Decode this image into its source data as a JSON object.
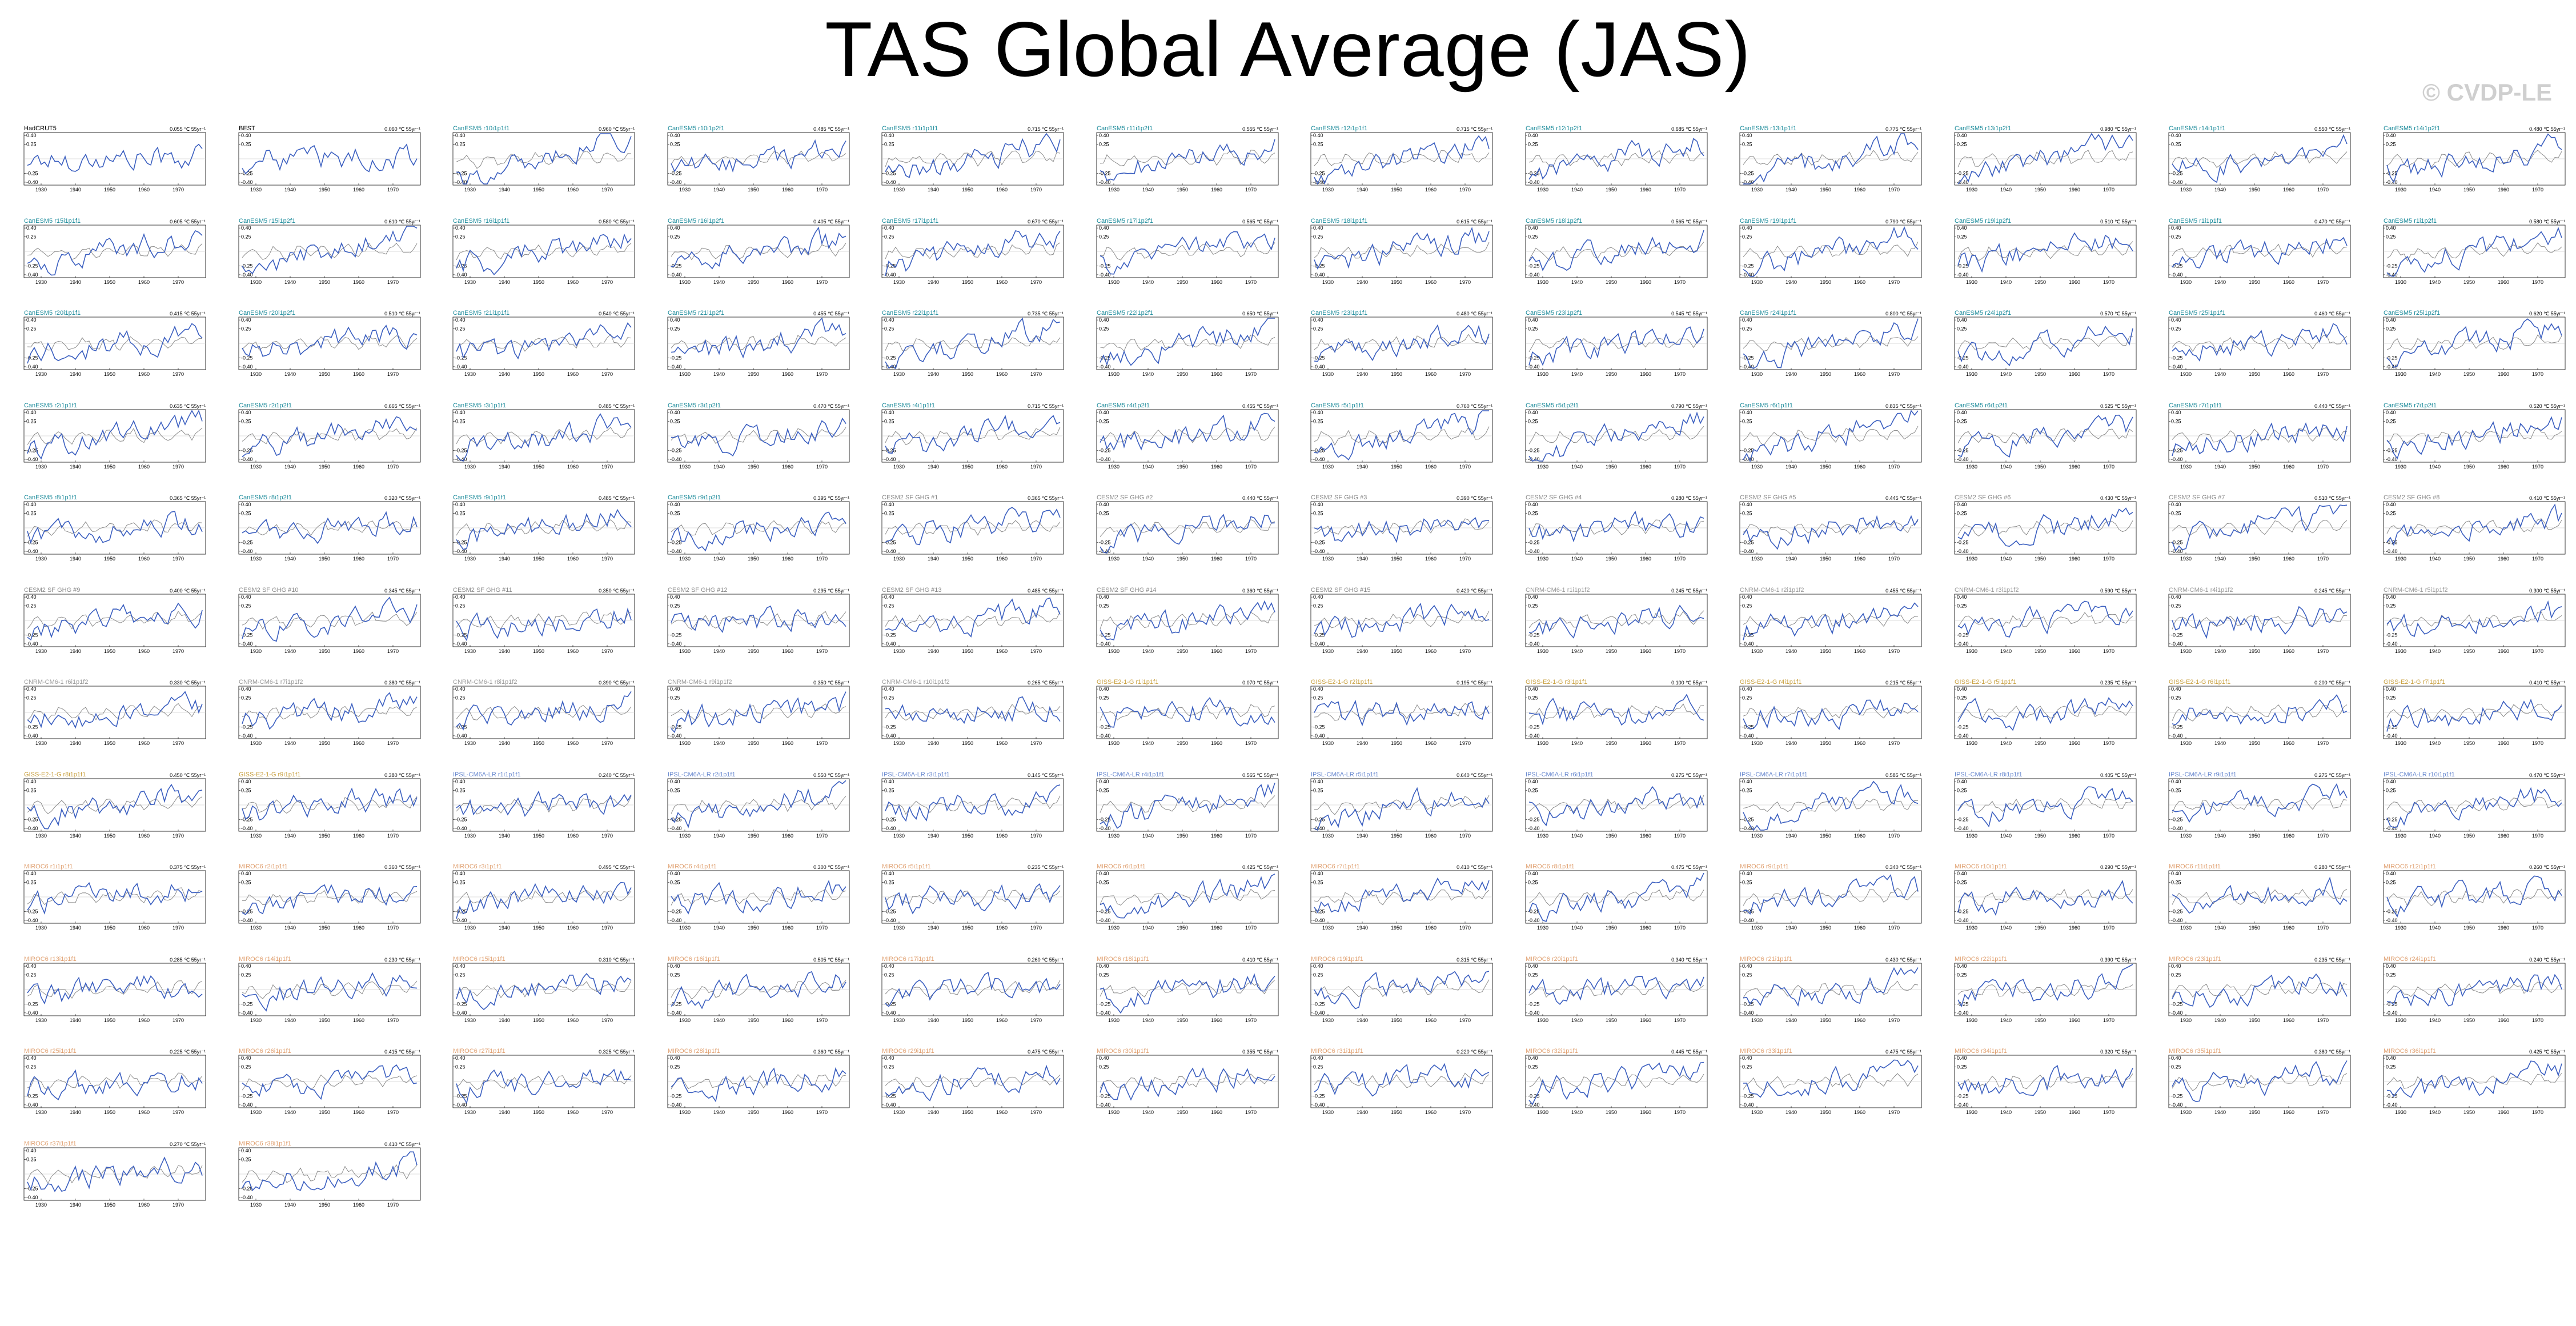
{
  "title": "TAS Global Average (JAS)",
  "watermark": "© CVDP-LE",
  "colors": {
    "data_line": "#3b5fc0",
    "reference_line": "#8a8a8a",
    "axis": "#000000",
    "cesm_title": "#1a8a9a",
    "cesm_lens_title": "#888888",
    "csiro_title": "#999999",
    "giss_title": "#c8a040",
    "ipsl_title": "#6a8ad0",
    "miroc_title": "#e0a070",
    "obs_title": "#000000"
  },
  "chart_data": {
    "type": "line",
    "layout": "panel grid, 12 columns",
    "x_ticks": [
      "1930",
      "1940",
      "1950",
      "1960",
      "1970"
    ],
    "y_ticks": [
      "0.40",
      "0.25",
      "-0.25",
      "-0.40"
    ],
    "xlim": [
      1925,
      1978
    ],
    "ylim": [
      -0.45,
      0.45
    ],
    "panels": [
      {
        "name": "HadCRUT5",
        "trend": "0.055 ℃ 55yr⁻¹",
        "group": "obs"
      },
      {
        "name": "BEST",
        "trend": "0.060 ℃ 55yr⁻¹",
        "group": "obs"
      },
      {
        "name": "CanESM5 r10i1p1f1",
        "trend": "0.960 ℃ 55yr⁻¹",
        "group": "cesm"
      },
      {
        "name": "CanESM5 r10i1p2f1",
        "trend": "0.485 ℃ 55yr⁻¹",
        "group": "cesm"
      },
      {
        "name": "CanESM5 r11i1p1f1",
        "trend": "0.715 ℃ 55yr⁻¹",
        "group": "cesm"
      },
      {
        "name": "CanESM5 r11i1p2f1",
        "trend": "0.555 ℃ 55yr⁻¹",
        "group": "cesm"
      },
      {
        "name": "CanESM5 r12i1p1f1",
        "trend": "0.715 ℃ 55yr⁻¹",
        "group": "cesm"
      },
      {
        "name": "CanESM5 r12i1p2f1",
        "trend": "0.685 ℃ 55yr⁻¹",
        "group": "cesm"
      },
      {
        "name": "CanESM5 r13i1p1f1",
        "trend": "0.775 ℃ 55yr⁻¹",
        "group": "cesm"
      },
      {
        "name": "CanESM5 r13i1p2f1",
        "trend": "0.980 ℃ 55yr⁻¹",
        "group": "cesm"
      },
      {
        "name": "CanESM5 r14i1p1f1",
        "trend": "0.550 ℃ 55yr⁻¹",
        "group": "cesm"
      },
      {
        "name": "CanESM5 r14i1p2f1",
        "trend": "0.480 ℃ 55yr⁻¹",
        "group": "cesm"
      },
      {
        "name": "CanESM5 r15i1p1f1",
        "trend": "0.605 ℃ 55yr⁻¹",
        "group": "cesm"
      },
      {
        "name": "CanESM5 r15i1p2f1",
        "trend": "0.610 ℃ 55yr⁻¹",
        "group": "cesm"
      },
      {
        "name": "CanESM5 r16i1p1f1",
        "trend": "0.580 ℃ 55yr⁻¹",
        "group": "cesm"
      },
      {
        "name": "CanESM5 r16i1p2f1",
        "trend": "0.405 ℃ 55yr⁻¹",
        "group": "cesm"
      },
      {
        "name": "CanESM5 r17i1p1f1",
        "trend": "0.670 ℃ 55yr⁻¹",
        "group": "cesm"
      },
      {
        "name": "CanESM5 r17i1p2f1",
        "trend": "0.565 ℃ 55yr⁻¹",
        "group": "cesm"
      },
      {
        "name": "CanESM5 r18i1p1f1",
        "trend": "0.615 ℃ 55yr⁻¹",
        "group": "cesm"
      },
      {
        "name": "CanESM5 r18i1p2f1",
        "trend": "0.565 ℃ 55yr⁻¹",
        "group": "cesm"
      },
      {
        "name": "CanESM5 r19i1p1f1",
        "trend": "0.790 ℃ 55yr⁻¹",
        "group": "cesm"
      },
      {
        "name": "CanESM5 r19i1p2f1",
        "trend": "0.510 ℃ 55yr⁻¹",
        "group": "cesm"
      },
      {
        "name": "CanESM5 r1i1p1f1",
        "trend": "0.470 ℃ 55yr⁻¹",
        "group": "cesm"
      },
      {
        "name": "CanESM5 r1i1p2f1",
        "trend": "0.580 ℃ 55yr⁻¹",
        "group": "cesm"
      },
      {
        "name": "CanESM5 r20i1p1f1",
        "trend": "0.415 ℃ 55yr⁻¹",
        "group": "cesm"
      },
      {
        "name": "CanESM5 r20i1p2f1",
        "trend": "0.510 ℃ 55yr⁻¹",
        "group": "cesm"
      },
      {
        "name": "CanESM5 r21i1p1f1",
        "trend": "0.540 ℃ 55yr⁻¹",
        "group": "cesm"
      },
      {
        "name": "CanESM5 r21i1p2f1",
        "trend": "0.455 ℃ 55yr⁻¹",
        "group": "cesm"
      },
      {
        "name": "CanESM5 r22i1p1f1",
        "trend": "0.735 ℃ 55yr⁻¹",
        "group": "cesm"
      },
      {
        "name": "CanESM5 r22i1p2f1",
        "trend": "0.650 ℃ 55yr⁻¹",
        "group": "cesm"
      },
      {
        "name": "CanESM5 r23i1p1f1",
        "trend": "0.480 ℃ 55yr⁻¹",
        "group": "cesm"
      },
      {
        "name": "CanESM5 r23i1p2f1",
        "trend": "0.545 ℃ 55yr⁻¹",
        "group": "cesm"
      },
      {
        "name": "CanESM5 r24i1p1f1",
        "trend": "0.800 ℃ 55yr⁻¹",
        "group": "cesm"
      },
      {
        "name": "CanESM5 r24i1p2f1",
        "trend": "0.570 ℃ 55yr⁻¹",
        "group": "cesm"
      },
      {
        "name": "CanESM5 r25i1p1f1",
        "trend": "0.460 ℃ 55yr⁻¹",
        "group": "cesm"
      },
      {
        "name": "CanESM5 r25i1p2f1",
        "trend": "0.620 ℃ 55yr⁻¹",
        "group": "cesm"
      },
      {
        "name": "CanESM5 r2i1p1f1",
        "trend": "0.635 ℃ 55yr⁻¹",
        "group": "cesm"
      },
      {
        "name": "CanESM5 r2i1p2f1",
        "trend": "0.665 ℃ 55yr⁻¹",
        "group": "cesm"
      },
      {
        "name": "CanESM5 r3i1p1f1",
        "trend": "0.485 ℃ 55yr⁻¹",
        "group": "cesm"
      },
      {
        "name": "CanESM5 r3i1p2f1",
        "trend": "0.470 ℃ 55yr⁻¹",
        "group": "cesm"
      },
      {
        "name": "CanESM5 r4i1p1f1",
        "trend": "0.715 ℃ 55yr⁻¹",
        "group": "cesm"
      },
      {
        "name": "CanESM5 r4i1p2f1",
        "trend": "0.455 ℃ 55yr⁻¹",
        "group": "cesm"
      },
      {
        "name": "CanESM5 r5i1p1f1",
        "trend": "0.760 ℃ 55yr⁻¹",
        "group": "cesm"
      },
      {
        "name": "CanESM5 r5i1p2f1",
        "trend": "0.790 ℃ 55yr⁻¹",
        "group": "cesm"
      },
      {
        "name": "CanESM5 r6i1p1f1",
        "trend": "0.835 ℃ 55yr⁻¹",
        "group": "cesm"
      },
      {
        "name": "CanESM5 r6i1p2f1",
        "trend": "0.525 ℃ 55yr⁻¹",
        "group": "cesm"
      },
      {
        "name": "CanESM5 r7i1p1f1",
        "trend": "0.440 ℃ 55yr⁻¹",
        "group": "cesm"
      },
      {
        "name": "CanESM5 r7i1p2f1",
        "trend": "0.520 ℃ 55yr⁻¹",
        "group": "cesm"
      },
      {
        "name": "CanESM5 r8i1p1f1",
        "trend": "0.365 ℃ 55yr⁻¹",
        "group": "cesm"
      },
      {
        "name": "CanESM5 r8i1p2f1",
        "trend": "0.320 ℃ 55yr⁻¹",
        "group": "cesm"
      },
      {
        "name": "CanESM5 r9i1p1f1",
        "trend": "0.485 ℃ 55yr⁻¹",
        "group": "cesm"
      },
      {
        "name": "CanESM5 r9i1p2f1",
        "trend": "0.395 ℃ 55yr⁻¹",
        "group": "cesm"
      },
      {
        "name": "CESM2 SF GHG #1",
        "trend": "0.365 ℃ 55yr⁻¹",
        "group": "cesm_lens"
      },
      {
        "name": "CESM2 SF GHG #2",
        "trend": "0.440 ℃ 55yr⁻¹",
        "group": "cesm_lens"
      },
      {
        "name": "CESM2 SF GHG #3",
        "trend": "0.390 ℃ 55yr⁻¹",
        "group": "cesm_lens"
      },
      {
        "name": "CESM2 SF GHG #4",
        "trend": "0.280 ℃ 55yr⁻¹",
        "group": "cesm_lens"
      },
      {
        "name": "CESM2 SF GHG #5",
        "trend": "0.445 ℃ 55yr⁻¹",
        "group": "cesm_lens"
      },
      {
        "name": "CESM2 SF GHG #6",
        "trend": "0.430 ℃ 55yr⁻¹",
        "group": "cesm_lens"
      },
      {
        "name": "CESM2 SF GHG #7",
        "trend": "0.510 ℃ 55yr⁻¹",
        "group": "cesm_lens"
      },
      {
        "name": "CESM2 SF GHG #8",
        "trend": "0.410 ℃ 55yr⁻¹",
        "group": "cesm_lens"
      },
      {
        "name": "CESM2 SF GHG #9",
        "trend": "0.400 ℃ 55yr⁻¹",
        "group": "cesm_lens"
      },
      {
        "name": "CESM2 SF GHG #10",
        "trend": "0.345 ℃ 55yr⁻¹",
        "group": "cesm_lens"
      },
      {
        "name": "CESM2 SF GHG #11",
        "trend": "0.350 ℃ 55yr⁻¹",
        "group": "cesm_lens"
      },
      {
        "name": "CESM2 SF GHG #12",
        "trend": "0.295 ℃ 55yr⁻¹",
        "group": "cesm_lens"
      },
      {
        "name": "CESM2 SF GHG #13",
        "trend": "0.485 ℃ 55yr⁻¹",
        "group": "cesm_lens"
      },
      {
        "name": "CESM2 SF GHG #14",
        "trend": "0.360 ℃ 55yr⁻¹",
        "group": "cesm_lens"
      },
      {
        "name": "CESM2 SF GHG #15",
        "trend": "0.420 ℃ 55yr⁻¹",
        "group": "cesm_lens"
      },
      {
        "name": "CNRM-CM6-1 r1i1p1f2",
        "trend": "0.245 ℃ 55yr⁻¹",
        "group": "csiro"
      },
      {
        "name": "CNRM-CM6-1 r2i1p1f2",
        "trend": "0.455 ℃ 55yr⁻¹",
        "group": "csiro"
      },
      {
        "name": "CNRM-CM6-1 r3i1p1f2",
        "trend": "0.590 ℃ 55yr⁻¹",
        "group": "csiro"
      },
      {
        "name": "CNRM-CM6-1 r4i1p1f2",
        "trend": "0.245 ℃ 55yr⁻¹",
        "group": "csiro"
      },
      {
        "name": "CNRM-CM6-1 r5i1p1f2",
        "trend": "0.300 ℃ 55yr⁻¹",
        "group": "csiro"
      },
      {
        "name": "CNRM-CM6-1 r6i1p1f2",
        "trend": "0.330 ℃ 55yr⁻¹",
        "group": "csiro"
      },
      {
        "name": "CNRM-CM6-1 r7i1p1f2",
        "trend": "0.380 ℃ 55yr⁻¹",
        "group": "csiro"
      },
      {
        "name": "CNRM-CM6-1 r8i1p1f2",
        "trend": "0.390 ℃ 55yr⁻¹",
        "group": "csiro"
      },
      {
        "name": "CNRM-CM6-1 r9i1p1f2",
        "trend": "0.350 ℃ 55yr⁻¹",
        "group": "csiro"
      },
      {
        "name": "CNRM-CM6-1 r10i1p1f2",
        "trend": "0.265 ℃ 55yr⁻¹",
        "group": "csiro"
      },
      {
        "name": "GISS-E2-1-G r1i1p1f1",
        "trend": "0.070 ℃ 55yr⁻¹",
        "group": "giss"
      },
      {
        "name": "GISS-E2-1-G r2i1p1f1",
        "trend": "0.195 ℃ 55yr⁻¹",
        "group": "giss"
      },
      {
        "name": "GISS-E2-1-G r3i1p1f1",
        "trend": "0.100 ℃ 55yr⁻¹",
        "group": "giss"
      },
      {
        "name": "GISS-E2-1-G r4i1p1f1",
        "trend": "0.215 ℃ 55yr⁻¹",
        "group": "giss"
      },
      {
        "name": "GISS-E2-1-G r5i1p1f1",
        "trend": "0.235 ℃ 55yr⁻¹",
        "group": "giss"
      },
      {
        "name": "GISS-E2-1-G r6i1p1f1",
        "trend": "0.200 ℃ 55yr⁻¹",
        "group": "giss"
      },
      {
        "name": "GISS-E2-1-G r7i1p1f1",
        "trend": "0.410 ℃ 55yr⁻¹",
        "group": "giss"
      },
      {
        "name": "GISS-E2-1-G r8i1p1f1",
        "trend": "0.450 ℃ 55yr⁻¹",
        "group": "giss"
      },
      {
        "name": "GISS-E2-1-G r9i1p1f1",
        "trend": "0.380 ℃ 55yr⁻¹",
        "group": "giss"
      },
      {
        "name": "IPSL-CM6A-LR r1i1p1f1",
        "trend": "0.240 ℃ 55yr⁻¹",
        "group": "ipsl"
      },
      {
        "name": "IPSL-CM6A-LR r2i1p1f1",
        "trend": "0.550 ℃ 55yr⁻¹",
        "group": "ipsl"
      },
      {
        "name": "IPSL-CM6A-LR r3i1p1f1",
        "trend": "0.145 ℃ 55yr⁻¹",
        "group": "ipsl"
      },
      {
        "name": "IPSL-CM6A-LR r4i1p1f1",
        "trend": "0.565 ℃ 55yr⁻¹",
        "group": "ipsl"
      },
      {
        "name": "IPSL-CM6A-LR r5i1p1f1",
        "trend": "0.640 ℃ 55yr⁻¹",
        "group": "ipsl"
      },
      {
        "name": "IPSL-CM6A-LR r6i1p1f1",
        "trend": "0.275 ℃ 55yr⁻¹",
        "group": "ipsl"
      },
      {
        "name": "IPSL-CM6A-LR r7i1p1f1",
        "trend": "0.585 ℃ 55yr⁻¹",
        "group": "ipsl"
      },
      {
        "name": "IPSL-CM6A-LR r8i1p1f1",
        "trend": "0.405 ℃ 55yr⁻¹",
        "group": "ipsl"
      },
      {
        "name": "IPSL-CM6A-LR r9i1p1f1",
        "trend": "0.275 ℃ 55yr⁻¹",
        "group": "ipsl"
      },
      {
        "name": "IPSL-CM6A-LR r10i1p1f1",
        "trend": "0.470 ℃ 55yr⁻¹",
        "group": "ipsl"
      },
      {
        "name": "MIROC6 r1i1p1f1",
        "trend": "0.375 ℃ 55yr⁻¹",
        "group": "miroc"
      },
      {
        "name": "MIROC6 r2i1p1f1",
        "trend": "0.360 ℃ 55yr⁻¹",
        "group": "miroc"
      },
      {
        "name": "MIROC6 r3i1p1f1",
        "trend": "0.495 ℃ 55yr⁻¹",
        "group": "miroc"
      },
      {
        "name": "MIROC6 r4i1p1f1",
        "trend": "0.300 ℃ 55yr⁻¹",
        "group": "miroc"
      },
      {
        "name": "MIROC6 r5i1p1f1",
        "trend": "0.235 ℃ 55yr⁻¹",
        "group": "miroc"
      },
      {
        "name": "MIROC6 r6i1p1f1",
        "trend": "0.425 ℃ 55yr⁻¹",
        "group": "miroc"
      },
      {
        "name": "MIROC6 r7i1p1f1",
        "trend": "0.410 ℃ 55yr⁻¹",
        "group": "miroc"
      },
      {
        "name": "MIROC6 r8i1p1f1",
        "trend": "0.475 ℃ 55yr⁻¹",
        "group": "miroc"
      },
      {
        "name": "MIROC6 r9i1p1f1",
        "trend": "0.340 ℃ 55yr⁻¹",
        "group": "miroc"
      },
      {
        "name": "MIROC6 r10i1p1f1",
        "trend": "0.290 ℃ 55yr⁻¹",
        "group": "miroc"
      },
      {
        "name": "MIROC6 r11i1p1f1",
        "trend": "0.280 ℃ 55yr⁻¹",
        "group": "miroc"
      },
      {
        "name": "MIROC6 r12i1p1f1",
        "trend": "0.260 ℃ 55yr⁻¹",
        "group": "miroc"
      },
      {
        "name": "MIROC6 r13i1p1f1",
        "trend": "0.285 ℃ 55yr⁻¹",
        "group": "miroc"
      },
      {
        "name": "MIROC6 r14i1p1f1",
        "trend": "0.230 ℃ 55yr⁻¹",
        "group": "miroc"
      },
      {
        "name": "MIROC6 r15i1p1f1",
        "trend": "0.310 ℃ 55yr⁻¹",
        "group": "miroc"
      },
      {
        "name": "MIROC6 r16i1p1f1",
        "trend": "0.505 ℃ 55yr⁻¹",
        "group": "miroc"
      },
      {
        "name": "MIROC6 r17i1p1f1",
        "trend": "0.260 ℃ 55yr⁻¹",
        "group": "miroc"
      },
      {
        "name": "MIROC6 r18i1p1f1",
        "trend": "0.410 ℃ 55yr⁻¹",
        "group": "miroc"
      },
      {
        "name": "MIROC6 r19i1p1f1",
        "trend": "0.315 ℃ 55yr⁻¹",
        "group": "miroc"
      },
      {
        "name": "MIROC6 r20i1p1f1",
        "trend": "0.340 ℃ 55yr⁻¹",
        "group": "miroc"
      },
      {
        "name": "MIROC6 r21i1p1f1",
        "trend": "0.430 ℃ 55yr⁻¹",
        "group": "miroc"
      },
      {
        "name": "MIROC6 r22i1p1f1",
        "trend": "0.390 ℃ 55yr⁻¹",
        "group": "miroc"
      },
      {
        "name": "MIROC6 r23i1p1f1",
        "trend": "0.235 ℃ 55yr⁻¹",
        "group": "miroc"
      },
      {
        "name": "MIROC6 r24i1p1f1",
        "trend": "0.240 ℃ 55yr⁻¹",
        "group": "miroc"
      },
      {
        "name": "MIROC6 r25i1p1f1",
        "trend": "0.225 ℃ 55yr⁻¹",
        "group": "miroc"
      },
      {
        "name": "MIROC6 r26i1p1f1",
        "trend": "0.415 ℃ 55yr⁻¹",
        "group": "miroc"
      },
      {
        "name": "MIROC6 r27i1p1f1",
        "trend": "0.325 ℃ 55yr⁻¹",
        "group": "miroc"
      },
      {
        "name": "MIROC6 r28i1p1f1",
        "trend": "0.360 ℃ 55yr⁻¹",
        "group": "miroc"
      },
      {
        "name": "MIROC6 r29i1p1f1",
        "trend": "0.475 ℃ 55yr⁻¹",
        "group": "miroc"
      },
      {
        "name": "MIROC6 r30i1p1f1",
        "trend": "0.355 ℃ 55yr⁻¹",
        "group": "miroc"
      },
      {
        "name": "MIROC6 r31i1p1f1",
        "trend": "0.220 ℃ 55yr⁻¹",
        "group": "miroc"
      },
      {
        "name": "MIROC6 r32i1p1f1",
        "trend": "0.445 ℃ 55yr⁻¹",
        "group": "miroc"
      },
      {
        "name": "MIROC6 r33i1p1f1",
        "trend": "0.475 ℃ 55yr⁻¹",
        "group": "miroc"
      },
      {
        "name": "MIROC6 r34i1p1f1",
        "trend": "0.320 ℃ 55yr⁻¹",
        "group": "miroc"
      },
      {
        "name": "MIROC6 r35i1p1f1",
        "trend": "0.380 ℃ 55yr⁻¹",
        "group": "miroc"
      },
      {
        "name": "MIROC6 r36i1p1f1",
        "trend": "0.425 ℃ 55yr⁻¹",
        "group": "miroc"
      },
      {
        "name": "MIROC6 r37i1p1f1",
        "trend": "0.270 ℃ 55yr⁻¹",
        "group": "miroc"
      },
      {
        "name": "MIROC6 r38i1p1f1",
        "trend": "0.410 ℃ 55yr⁻¹",
        "group": "miroc"
      }
    ]
  }
}
